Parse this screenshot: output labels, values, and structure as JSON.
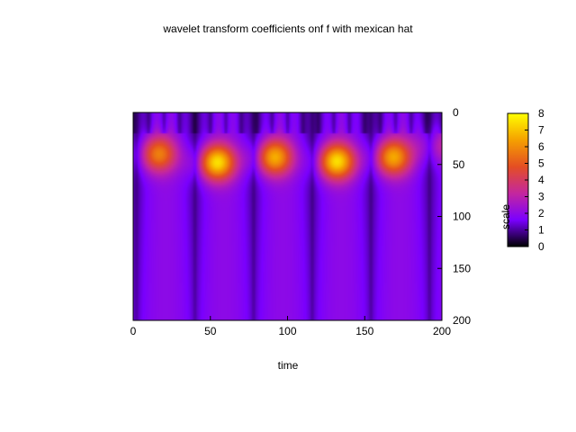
{
  "chart_data": {
    "type": "heatmap",
    "title": "wavelet transform coefficients onf f with mexican hat",
    "xlabel": "time",
    "ylabel": "scale",
    "xlim": [
      0,
      200
    ],
    "ylim": [
      0,
      200
    ],
    "y_reversed": true,
    "x_ticks": [
      "0",
      "50",
      "100",
      "150",
      "200"
    ],
    "y_ticks": [
      "0",
      "50",
      "100",
      "150",
      "200"
    ],
    "colorbar": {
      "range": [
        0,
        8
      ],
      "ticks": [
        "0",
        "1",
        "2",
        "3",
        "4",
        "5",
        "6",
        "7",
        "8"
      ],
      "colors": [
        "#000000",
        "#7a00ff",
        "#c4279e",
        "#e44e23",
        "#f5a000",
        "#ffff00"
      ]
    },
    "peaks": [
      {
        "time": 15,
        "scale": 40,
        "value": 6.0
      },
      {
        "time": 53,
        "scale": 48,
        "value": 7.8
      },
      {
        "time": 90,
        "scale": 43,
        "value": 7.0
      },
      {
        "time": 131,
        "scale": 47,
        "value": 7.6
      },
      {
        "time": 167,
        "scale": 43,
        "value": 6.8
      },
      {
        "time": 196,
        "scale": 32,
        "value": 4.0
      }
    ],
    "grid": false
  }
}
